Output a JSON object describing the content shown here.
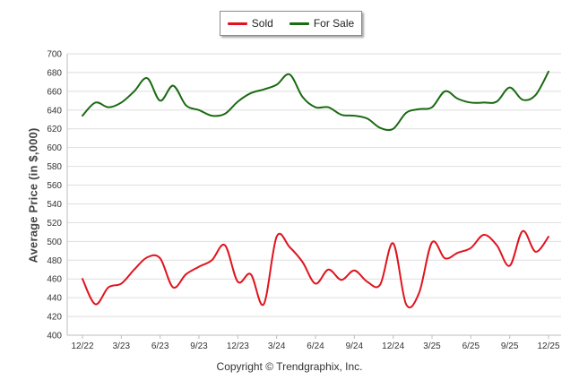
{
  "chart_data": {
    "type": "line",
    "title": "",
    "xlabel": "",
    "ylabel": "Average Price (in $,000)",
    "ylim": [
      400,
      700
    ],
    "yticks": [
      400,
      420,
      440,
      460,
      480,
      500,
      520,
      540,
      560,
      580,
      600,
      620,
      640,
      660,
      680,
      700
    ],
    "xlim": [
      0,
      36
    ],
    "xticks": [
      {
        "x": 0,
        "label": "12/22"
      },
      {
        "x": 3,
        "label": "3/23"
      },
      {
        "x": 6,
        "label": "6/23"
      },
      {
        "x": 9,
        "label": "9/23"
      },
      {
        "x": 12,
        "label": "12/23"
      },
      {
        "x": 15,
        "label": "3/24"
      },
      {
        "x": 18,
        "label": "6/24"
      },
      {
        "x": 21,
        "label": "9/24"
      },
      {
        "x": 24,
        "label": "12/24"
      },
      {
        "x": 27,
        "label": "3/25"
      },
      {
        "x": 30,
        "label": "6/25"
      },
      {
        "x": 33,
        "label": "9/25"
      },
      {
        "x": 36,
        "label": "12/25"
      }
    ],
    "grid": true,
    "legend_position": "top-center",
    "series": [
      {
        "name": "Sold",
        "color": "#e0141e",
        "values": [
          460,
          433,
          451,
          455,
          470,
          483,
          482,
          451,
          465,
          473,
          480,
          496,
          457,
          465,
          433,
          505,
          494,
          478,
          455,
          470,
          459,
          469,
          457,
          454,
          498,
          433,
          445,
          499,
          482,
          488,
          493,
          507,
          496,
          474,
          511,
          489,
          505
        ]
      },
      {
        "name": "For Sale",
        "color": "#1a6b12",
        "values": [
          634,
          648,
          643,
          648,
          660,
          674,
          650,
          666,
          645,
          640,
          634,
          636,
          649,
          658,
          662,
          667,
          678,
          654,
          643,
          643,
          635,
          634,
          631,
          621,
          620,
          637,
          641,
          643,
          660,
          652,
          648,
          648,
          649,
          664,
          651,
          656,
          681
        ]
      }
    ]
  },
  "footer": {
    "copyright": "Copyright © Trendgraphix, Inc."
  }
}
